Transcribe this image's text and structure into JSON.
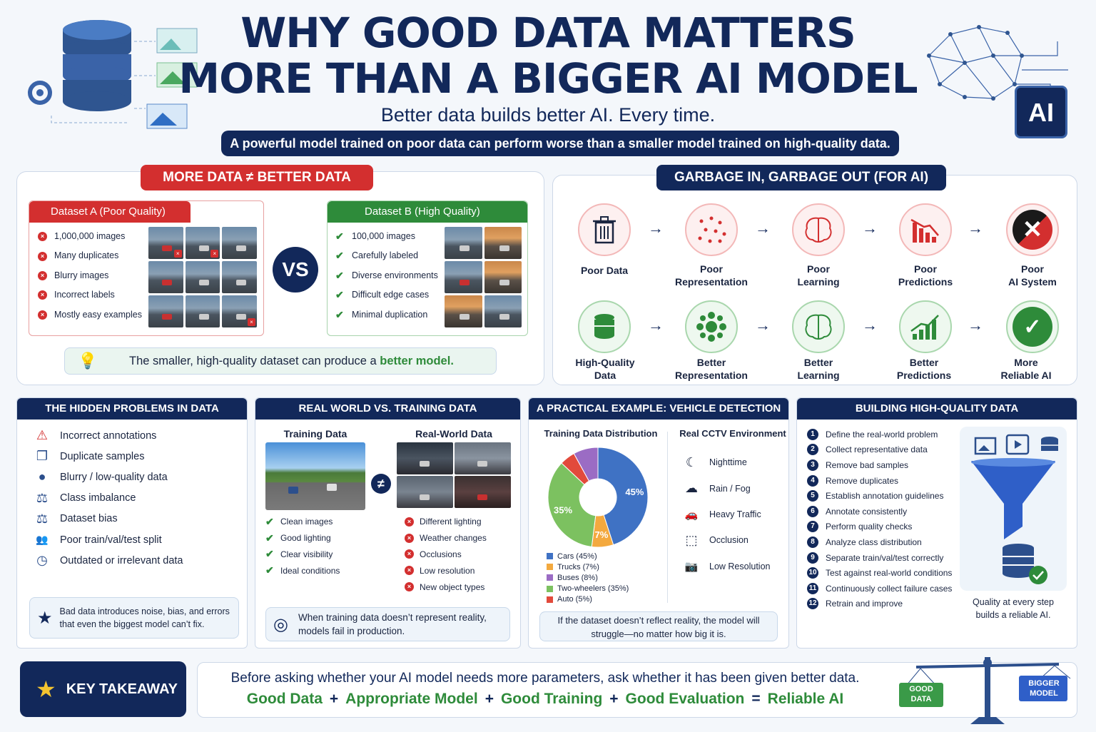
{
  "header": {
    "title_line1": "WHY GOOD DATA MATTERS",
    "title_line2": "MORE THAN A BIGGER AI MODEL",
    "subtitle": "Better data builds better AI. Every time.",
    "banner": "A powerful model trained on poor data can perform worse than a smaller model trained on high-quality data.",
    "ai_badge": "AI"
  },
  "more_data": {
    "title": "MORE DATA ≠ BETTER DATA",
    "vs": "VS",
    "dataset_a": {
      "title": "Dataset A (Poor Quality)",
      "items": [
        "1,000,000 images",
        "Many duplicates",
        "Blurry images",
        "Incorrect labels",
        "Mostly easy examples"
      ]
    },
    "dataset_b": {
      "title": "Dataset B (High Quality)",
      "items": [
        "100,000 images",
        "Carefully labeled",
        "Diverse environments",
        "Difficult edge cases",
        "Minimal duplication"
      ]
    },
    "note_prefix": "The smaller, high-quality dataset can produce a ",
    "note_highlight": "better model."
  },
  "garbage": {
    "title": "GARBAGE IN, GARBAGE OUT (FOR AI)",
    "bad_row": [
      {
        "icon": "trash-icon",
        "l1": "Poor Data",
        "l2": ""
      },
      {
        "icon": "scatter-icon",
        "l1": "Poor",
        "l2": "Representation"
      },
      {
        "icon": "brain-icon",
        "l1": "Poor",
        "l2": "Learning"
      },
      {
        "icon": "declining-chart-icon",
        "l1": "Poor",
        "l2": "Predictions"
      },
      {
        "icon": "x-circle-icon",
        "l1": "Poor",
        "l2": "AI System"
      }
    ],
    "good_row": [
      {
        "icon": "database-icon",
        "l1": "High-Quality",
        "l2": "Data"
      },
      {
        "icon": "cluster-icon",
        "l1": "Better",
        "l2": "Representation"
      },
      {
        "icon": "brain-icon",
        "l1": "Better",
        "l2": "Learning"
      },
      {
        "icon": "rising-chart-icon",
        "l1": "Better",
        "l2": "Predictions"
      },
      {
        "icon": "check-circle-icon",
        "l1": "More",
        "l2": "Reliable AI"
      }
    ],
    "arrow": "→",
    "bad_color": "#d32f2f",
    "good_color": "#2e8b3a"
  },
  "hidden": {
    "title": "THE HIDDEN PROBLEMS IN DATA",
    "items": [
      {
        "icon": "warning-icon",
        "glyph": "⚠",
        "label": "Incorrect annotations"
      },
      {
        "icon": "copy-icon",
        "glyph": "❐",
        "label": "Duplicate samples"
      },
      {
        "icon": "person-icon",
        "glyph": "●",
        "label": "Blurry / low-quality data"
      },
      {
        "icon": "scale-icon",
        "glyph": "⚖",
        "label": "Class imbalance"
      },
      {
        "icon": "scale-icon",
        "glyph": "⚖",
        "label": "Dataset bias"
      },
      {
        "icon": "people-icon",
        "glyph": "👥",
        "label": "Poor train/val/test split"
      },
      {
        "icon": "clock-icon",
        "glyph": "◷",
        "label": "Outdated or irrelevant data"
      }
    ],
    "note": "Bad data introduces noise, bias, and errors that even the biggest model can’t fix.",
    "star": "★"
  },
  "real_world": {
    "title": "REAL WORLD VS. TRAINING DATA",
    "training_label": "Training Data",
    "real_label": "Real-World Data",
    "neq": "≠",
    "training_items": [
      "Clean images",
      "Good lighting",
      "Clear visibility",
      "Ideal conditions"
    ],
    "real_items": [
      "Different lighting",
      "Weather changes",
      "Occlusions",
      "Low resolution",
      "New object types"
    ],
    "note": "When training data doesn’t represent reality, models fail in production."
  },
  "vehicle": {
    "title": "A PRACTICAL EXAMPLE: VEHICLE DETECTION",
    "dist_label": "Training Data Distribution",
    "env_label": "Real CCTV Environment",
    "env_items": [
      {
        "icon": "moon-icon",
        "glyph": "☾",
        "label": "Nighttime"
      },
      {
        "icon": "rain-cloud-icon",
        "glyph": "☁",
        "label": "Rain / Fog"
      },
      {
        "icon": "car-icon",
        "glyph": "🚗",
        "label": "Heavy Traffic"
      },
      {
        "icon": "occlusion-icon",
        "glyph": "⬚",
        "label": "Occlusion"
      },
      {
        "icon": "camera-icon",
        "glyph": "📷",
        "label": "Low Resolution"
      }
    ],
    "note": "If the dataset doesn’t reflect reality, the model will struggle—no matter how big it is."
  },
  "chart_data": {
    "type": "pie",
    "categories": [
      "Cars",
      "Trucks",
      "Buses",
      "Two-wheelers",
      "Auto"
    ],
    "values": [
      45,
      7,
      8,
      35,
      5
    ],
    "legend": [
      "Cars (45%)",
      "Trucks (7%)",
      "Buses (8%)",
      "Two-wheelers (35%)",
      "Auto (5%)"
    ],
    "data_labels": [
      "45%",
      "7%",
      "",
      "35%",
      ""
    ],
    "colors": [
      "#3f72c4",
      "#f3a93f",
      "#9b6cc4",
      "#7cc160",
      "#e24a3b"
    ],
    "donut": true,
    "legend_position": "bottom-left"
  },
  "building": {
    "title": "BUILDING HIGH-QUALITY DATA",
    "steps": [
      "Define the real-world problem",
      "Collect representative data",
      "Remove bad samples",
      "Remove duplicates",
      "Establish annotation guidelines",
      "Annotate consistently",
      "Perform quality checks",
      "Analyze class distribution",
      "Separate train/val/test correctly",
      "Test against real-world conditions",
      "Continuously collect failure cases",
      "Retrain and improve"
    ],
    "caption_l1": "Quality at every step",
    "caption_l2": "builds a reliable AI."
  },
  "takeaway": {
    "label": "KEY TAKEAWAY",
    "star": "★",
    "line": "Before asking whether your AI model needs more parameters, ask whether it has been given better data.",
    "eq": [
      "Good Data",
      "Appropriate Model",
      "Good Training",
      "Good Evaluation",
      "Reliable AI"
    ],
    "plus": "+",
    "equals": "=",
    "good_data": "GOOD DATA",
    "bigger_model": "BIGGER MODEL"
  },
  "colors": {
    "navy": "#12285a",
    "red": "#d32f2f",
    "green": "#2e8b3a"
  }
}
